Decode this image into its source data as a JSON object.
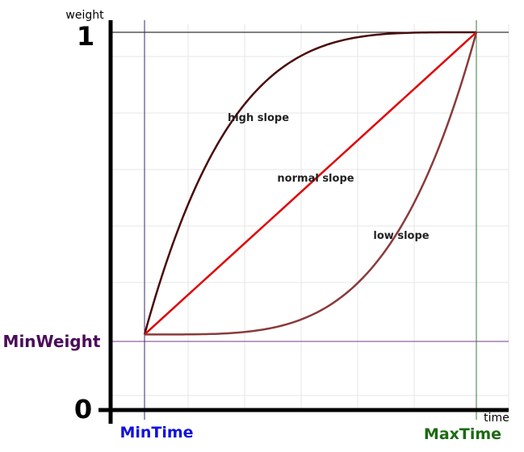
{
  "chart_data": {
    "type": "line",
    "xlabel": "time",
    "ylabel": "weight",
    "y_ticks": {
      "top": "1",
      "bottom": "0"
    },
    "markers": {
      "min_weight": {
        "label": "MinWeight",
        "color": "#4b0b5a"
      },
      "min_time": {
        "label": "MinTime",
        "color": "#1010e0"
      },
      "max_time": {
        "label": "MaxTime",
        "color": "#1c6a12"
      }
    },
    "domain": {
      "t_min": 0,
      "t_max": 1,
      "w_min": 0.2,
      "w_max": 1
    },
    "series": [
      {
        "label": "high slope",
        "shape": "concave",
        "exponent": 0.25,
        "color": "#4a0a0a"
      },
      {
        "label": "normal slope",
        "shape": "linear",
        "exponent": 1,
        "color": "#e00000"
      },
      {
        "label": "low slope",
        "shape": "convex",
        "exponent": 4,
        "color": "#8a3a3a"
      }
    ]
  }
}
